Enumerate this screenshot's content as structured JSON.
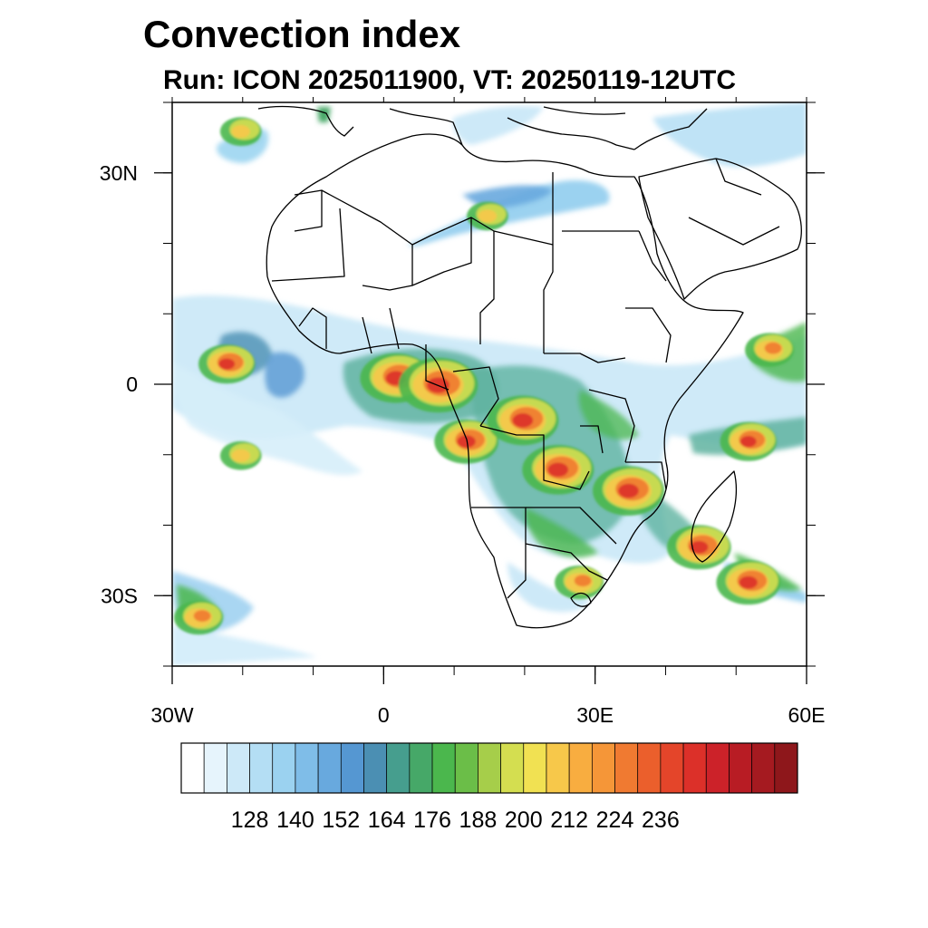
{
  "title": "Convection index",
  "subtitle": "Run: ICON 2025011900,  VT: 20250119-12UTC",
  "map": {
    "lon_range": [
      -30,
      60
    ],
    "lat_range": [
      -40,
      40
    ],
    "y_ticks": [
      {
        "lat": 30,
        "label": "30N"
      },
      {
        "lat": 0,
        "label": "0"
      },
      {
        "lat": -30,
        "label": "30S"
      }
    ],
    "x_ticks": [
      {
        "lon": -30,
        "label": "30W"
      },
      {
        "lon": 0,
        "label": "0"
      },
      {
        "lon": 30,
        "label": "30E"
      },
      {
        "lon": 60,
        "label": "60E"
      }
    ]
  },
  "colorbar": {
    "labels": [
      "128",
      "140",
      "152",
      "164",
      "176",
      "188",
      "200",
      "212",
      "224",
      "236"
    ],
    "colors": [
      "#ffffff",
      "#e6f4fc",
      "#cde9f8",
      "#b4def4",
      "#9bd2f0",
      "#7fbde8",
      "#68a9de",
      "#5597d2",
      "#4b8fb3",
      "#469e8e",
      "#46a868",
      "#4bb74d",
      "#6bbe48",
      "#a6ce4a",
      "#d4de50",
      "#f1e152",
      "#f7c84a",
      "#f8ad40",
      "#f59638",
      "#f07a31",
      "#eb5f2c",
      "#e4452a",
      "#dc3029",
      "#cc2229",
      "#b81c24",
      "#a51a20",
      "#8e171b"
    ]
  },
  "convection_cells": [
    {
      "lon": 2,
      "lat": 1,
      "level": 7
    },
    {
      "lon": 8,
      "lat": 0,
      "level": 8
    },
    {
      "lon": 12,
      "lat": -8,
      "level": 6
    },
    {
      "lon": 20,
      "lat": -5,
      "level": 7
    },
    {
      "lon": 25,
      "lat": -12,
      "level": 7
    },
    {
      "lon": 35,
      "lat": -15,
      "level": 7
    },
    {
      "lon": 45,
      "lat": -23,
      "level": 6
    },
    {
      "lon": 52,
      "lat": -8,
      "level": 5
    },
    {
      "lon": -22,
      "lat": 3,
      "level": 5
    },
    {
      "lon": -20,
      "lat": -10,
      "level": 3
    },
    {
      "lon": -26,
      "lat": -33,
      "level": 4
    },
    {
      "lon": 52,
      "lat": -28,
      "level": 6
    },
    {
      "lon": 28,
      "lat": -28,
      "level": 4
    },
    {
      "lon": 55,
      "lat": 5,
      "level": 4
    },
    {
      "lon": 15,
      "lat": 24,
      "level": 3
    },
    {
      "lon": -20,
      "lat": 36,
      "level": 3
    }
  ]
}
